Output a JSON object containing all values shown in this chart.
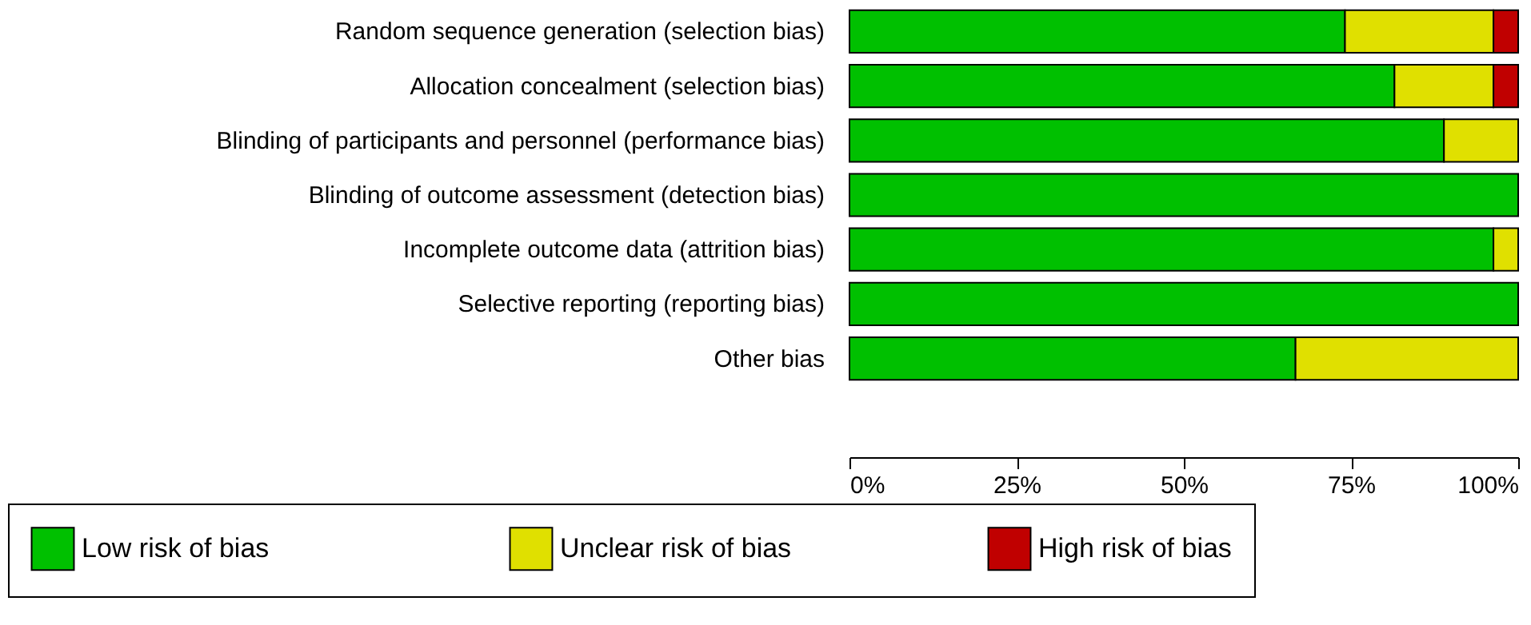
{
  "chart_data": {
    "type": "bar",
    "orientation": "horizontal",
    "stacked": true,
    "categories": [
      "Random sequence generation (selection bias)",
      "Allocation concealment (selection bias)",
      "Blinding of participants and personnel (performance bias)",
      "Blinding of outcome assessment (detection bias)",
      "Incomplete outcome data (attrition bias)",
      "Selective reporting (reporting bias)",
      "Other bias"
    ],
    "series": [
      {
        "name": "Low risk of bias",
        "color": "#00c000",
        "values": [
          74.1,
          81.5,
          88.9,
          100,
          96.3,
          100,
          66.7
        ]
      },
      {
        "name": "Unclear risk of bias",
        "color": "#e0e000",
        "values": [
          22.2,
          14.8,
          11.1,
          0,
          3.7,
          0,
          33.3
        ]
      },
      {
        "name": "High risk of bias",
        "color": "#c00000",
        "values": [
          3.7,
          3.7,
          0,
          0,
          0,
          0,
          0
        ]
      }
    ],
    "xlim": [
      0,
      100
    ],
    "xticks": [
      {
        "value": 0,
        "label": "0%"
      },
      {
        "value": 25,
        "label": "25%"
      },
      {
        "value": 50,
        "label": "50%"
      },
      {
        "value": 75,
        "label": "75%"
      },
      {
        "value": 100,
        "label": "100%"
      }
    ],
    "grid": false,
    "legend": "bottom"
  }
}
